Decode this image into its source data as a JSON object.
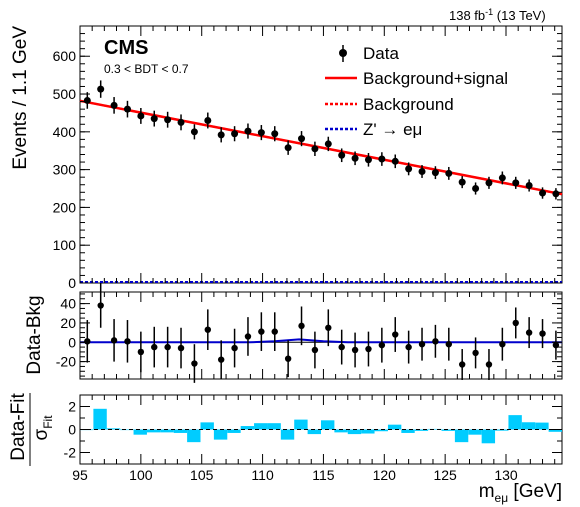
{
  "header": {
    "lumi_text": "138 fb",
    "lumi_exp": "-1",
    "lumi_energy": " (13 TeV)"
  },
  "experiment": "CMS",
  "selection": "0.3 < BDT < 0.7",
  "colors": {
    "fit": "#ff0000",
    "background": "#ff0000",
    "signal": "#0000cc",
    "pull_fill": "#00ccff",
    "data": "#000000"
  },
  "chart_data": [
    {
      "type": "scatter",
      "panel": "main",
      "ylabel": "Events / 1.1 GeV",
      "xlim": [
        95,
        134.6
      ],
      "ylim": [
        0,
        680
      ],
      "yticks": [
        0,
        100,
        200,
        300,
        400,
        500,
        600
      ],
      "grid": false,
      "legend_position": "top-right",
      "legend": [
        "Data",
        "Background+signal",
        "Background",
        "Z' → eμ"
      ],
      "data": {
        "name": "Data",
        "x": [
          95.6,
          96.7,
          97.8,
          98.9,
          100.0,
          101.1,
          102.2,
          103.3,
          104.4,
          105.5,
          106.6,
          107.7,
          108.8,
          109.9,
          111.0,
          112.1,
          113.2,
          114.3,
          115.4,
          116.5,
          117.6,
          118.7,
          119.8,
          120.9,
          122.0,
          123.1,
          124.2,
          125.3,
          126.4,
          127.5,
          128.6,
          129.7,
          130.8,
          131.9,
          133.0,
          134.1
        ],
        "y": [
          483,
          513,
          470,
          460,
          442,
          435,
          432,
          425,
          400,
          430,
          392,
          395,
          402,
          398,
          395,
          358,
          382,
          355,
          368,
          338,
          330,
          326,
          328,
          322,
          302,
          295,
          292,
          290,
          267,
          250,
          265,
          278,
          265,
          258,
          238,
          236
        ],
        "yerr": [
          22,
          23,
          22,
          22,
          21,
          21,
          21,
          21,
          20,
          21,
          20,
          20,
          20,
          20,
          20,
          19,
          20,
          19,
          19,
          18,
          18,
          18,
          18,
          18,
          17,
          17,
          17,
          17,
          16,
          16,
          16,
          17,
          16,
          16,
          15,
          15
        ]
      },
      "fit": {
        "name": "Background+signal",
        "x": [
          95.0,
          134.6
        ],
        "y": [
          482,
          235
        ]
      },
      "background": {
        "name": "Background",
        "x": [
          95.0,
          134.6
        ],
        "y": [
          482,
          235
        ]
      },
      "signal": {
        "name": "Z' → eμ",
        "x": [
          95.0,
          134.6
        ],
        "y": [
          0,
          0
        ]
      }
    },
    {
      "type": "scatter",
      "panel": "residual",
      "ylabel": "Data-Bkg",
      "xlim": [
        95,
        134.6
      ],
      "ylim": [
        -38,
        52
      ],
      "yticks": [
        -20,
        0,
        20,
        40
      ],
      "data": {
        "x": [
          95.6,
          96.7,
          97.8,
          98.9,
          100.0,
          101.1,
          102.2,
          103.3,
          104.4,
          105.5,
          106.6,
          107.7,
          108.8,
          109.9,
          111.0,
          112.1,
          113.2,
          114.3,
          115.4,
          116.5,
          117.6,
          118.7,
          119.8,
          120.9,
          122.0,
          123.1,
          124.2,
          125.3,
          126.4,
          127.5,
          128.6,
          129.7,
          130.8,
          131.9,
          133.0,
          134.1
        ],
        "y": [
          1,
          38,
          2,
          1,
          -10,
          -5,
          -5,
          -6,
          -22,
          13,
          -18,
          -6,
          6,
          11,
          11,
          -17,
          17,
          -8,
          15,
          -5,
          -8,
          -7,
          -3,
          8,
          -5,
          -2,
          1,
          -2,
          -23,
          -11,
          -23,
          -2,
          20,
          10,
          9,
          -3
        ],
        "yerr": [
          22,
          23,
          22,
          22,
          21,
          21,
          21,
          21,
          20,
          21,
          20,
          20,
          20,
          20,
          20,
          19,
          20,
          19,
          19,
          18,
          18,
          18,
          18,
          18,
          17,
          17,
          17,
          17,
          16,
          16,
          16,
          17,
          16,
          16,
          15,
          15
        ]
      },
      "signal": {
        "x": [
          95,
          109,
          111,
          113,
          115,
          117,
          134.6
        ],
        "y": [
          0,
          0,
          1,
          3,
          1,
          0,
          0
        ]
      }
    },
    {
      "type": "bar",
      "panel": "pull",
      "ylabel": "Data-Fit",
      "ylabel_denominator": "σ",
      "ylabel_denominator_sub": "Fit",
      "xlabel": "m",
      "xlabel_sub": "eμ",
      "xlabel_unit": " [GeV]",
      "xlim": [
        95,
        134.6
      ],
      "ylim": [
        -3,
        3
      ],
      "yticks": [
        -2,
        0,
        2
      ],
      "xticks": [
        95,
        100,
        105,
        110,
        115,
        120,
        125,
        130
      ],
      "bin_edges": [
        95,
        96.1,
        97.2,
        98.3,
        99.4,
        100.5,
        101.6,
        102.7,
        103.8,
        104.9,
        106.0,
        107.1,
        108.2,
        109.3,
        110.4,
        111.5,
        112.6,
        113.7,
        114.8,
        115.9,
        117.0,
        118.1,
        119.2,
        120.3,
        121.4,
        122.5,
        123.6,
        124.7,
        125.8,
        126.9,
        128.0,
        129.1,
        130.2,
        131.3,
        132.4,
        133.5,
        134.6
      ],
      "values": [
        0.0,
        1.8,
        0.1,
        0.0,
        -0.45,
        -0.25,
        -0.25,
        -0.3,
        -1.1,
        0.62,
        -0.88,
        -0.3,
        0.3,
        0.55,
        0.55,
        -0.88,
        0.86,
        -0.4,
        0.8,
        -0.25,
        -0.4,
        -0.35,
        -0.15,
        0.42,
        -0.3,
        -0.12,
        0.05,
        -0.12,
        -1.1,
        -0.45,
        -1.2,
        -0.1,
        1.25,
        0.63,
        0.6,
        -0.2
      ]
    }
  ]
}
